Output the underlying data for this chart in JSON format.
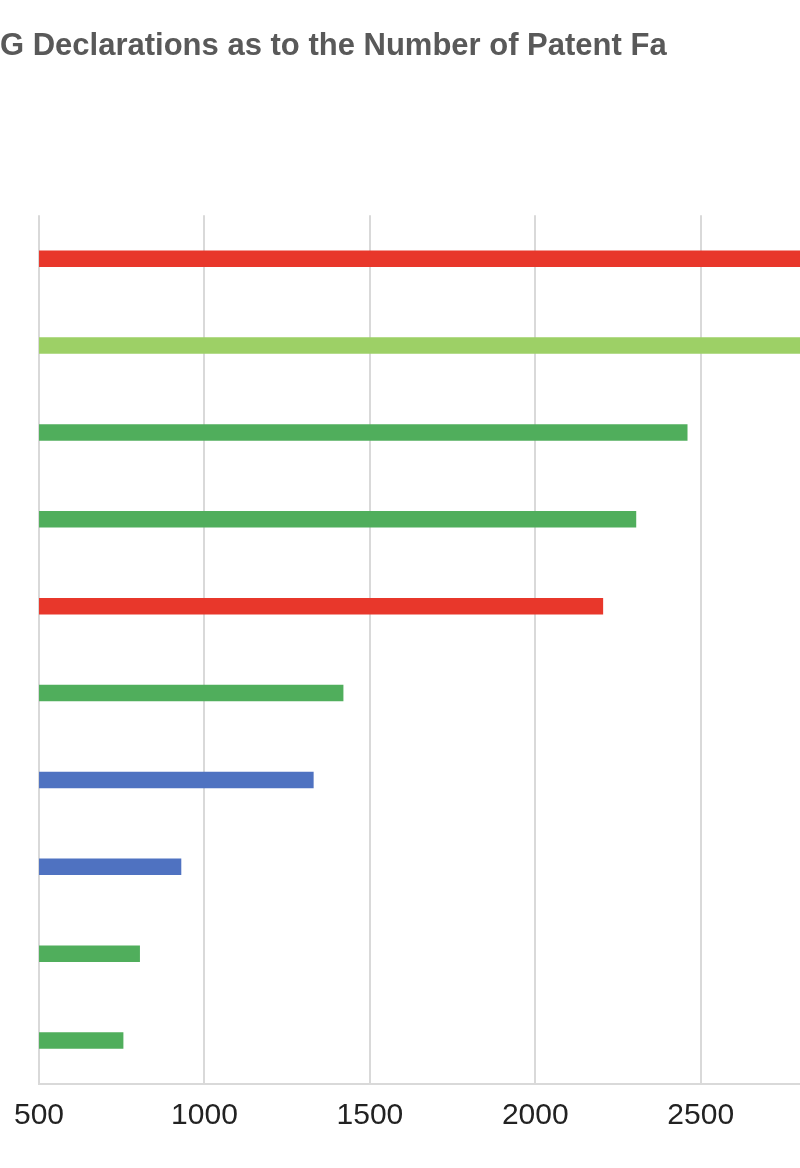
{
  "chart_data": {
    "type": "bar",
    "orientation": "horizontal",
    "title": "G Declarations as to the Number of Patent Fa",
    "categories": [
      null,
      null,
      null,
      null,
      null,
      null,
      null,
      null,
      null,
      null
    ],
    "values": [
      2800,
      2800,
      2460,
      2305,
      2205,
      1420,
      1330,
      930,
      805,
      755
    ],
    "colors": [
      "#e8372b",
      "#9dd066",
      "#50ae5c",
      "#50ae5c",
      "#e8372b",
      "#50ae5c",
      "#4f72c1",
      "#4f72c1",
      "#50ae5c",
      "#50ae5c"
    ],
    "xlim": [
      500,
      2800
    ],
    "xticks": [
      500,
      1000,
      1500,
      2000,
      2500
    ],
    "grid": "x",
    "tick_labels": "x",
    "legend": false
  }
}
